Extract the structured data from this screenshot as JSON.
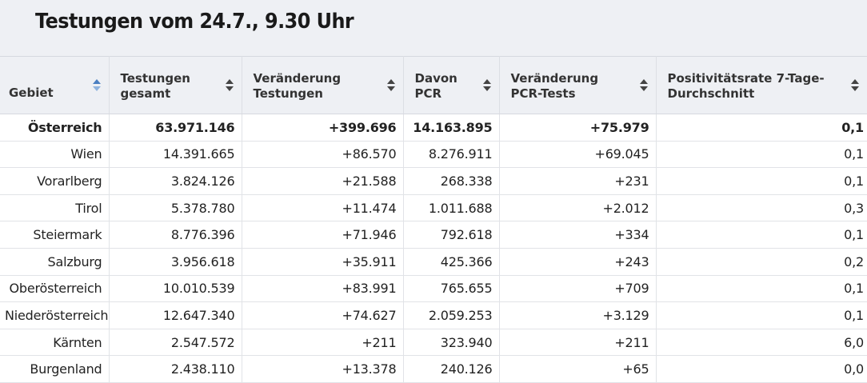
{
  "title": "Testungen vom 24.7., 9.30 Uhr",
  "columns": [
    {
      "label": "Gebiet"
    },
    {
      "label": "Testungen gesamt"
    },
    {
      "label": "Veränderung Testungen"
    },
    {
      "label": "Davon PCR"
    },
    {
      "label": "Veränderung PCR-Tests"
    },
    {
      "label": "Positivitätsrate 7-Tage-Durchschnitt"
    }
  ],
  "sorted_column": "Gebiet",
  "colors": {
    "header_bg": "#eef0f4",
    "sort_active": "#4a7fc1"
  },
  "rows": [
    {
      "name": "Österreich",
      "gesamt": "63.971.146",
      "veraenderung": "+399.696",
      "pcr": "14.163.895",
      "pcr_veraenderung": "+75.979",
      "rate": "0,1",
      "total": true
    },
    {
      "name": "Wien",
      "gesamt": "14.391.665",
      "veraenderung": "+86.570",
      "pcr": "8.276.911",
      "pcr_veraenderung": "+69.045",
      "rate": "0,1"
    },
    {
      "name": "Vorarlberg",
      "gesamt": "3.824.126",
      "veraenderung": "+21.588",
      "pcr": "268.338",
      "pcr_veraenderung": "+231",
      "rate": "0,1"
    },
    {
      "name": "Tirol",
      "gesamt": "5.378.780",
      "veraenderung": "+11.474",
      "pcr": "1.011.688",
      "pcr_veraenderung": "+2.012",
      "rate": "0,3"
    },
    {
      "name": "Steiermark",
      "gesamt": "8.776.396",
      "veraenderung": "+71.946",
      "pcr": "792.618",
      "pcr_veraenderung": "+334",
      "rate": "0,1"
    },
    {
      "name": "Salzburg",
      "gesamt": "3.956.618",
      "veraenderung": "+35.911",
      "pcr": "425.366",
      "pcr_veraenderung": "+243",
      "rate": "0,2"
    },
    {
      "name": "Oberösterreich",
      "gesamt": "10.010.539",
      "veraenderung": "+83.991",
      "pcr": "765.655",
      "pcr_veraenderung": "+709",
      "rate": "0,1"
    },
    {
      "name": "Niederösterreich",
      "gesamt": "12.647.340",
      "veraenderung": "+74.627",
      "pcr": "2.059.253",
      "pcr_veraenderung": "+3.129",
      "rate": "0,1"
    },
    {
      "name": "Kärnten",
      "gesamt": "2.547.572",
      "veraenderung": "+211",
      "pcr": "323.940",
      "pcr_veraenderung": "+211",
      "rate": "6,0"
    },
    {
      "name": "Burgenland",
      "gesamt": "2.438.110",
      "veraenderung": "+13.378",
      "pcr": "240.126",
      "pcr_veraenderung": "+65",
      "rate": "0,0"
    }
  ]
}
